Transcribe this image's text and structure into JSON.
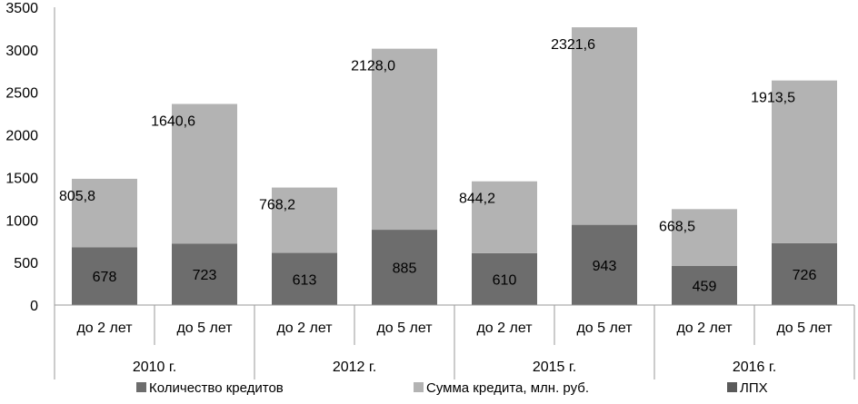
{
  "chart_data": {
    "type": "bar",
    "stacked": true,
    "ylim": [
      0,
      3500
    ],
    "yticks": [
      "0",
      "500",
      "1000",
      "1500",
      "2000",
      "2500",
      "3000",
      "3500"
    ],
    "grid": false,
    "legend_position": "bottom",
    "groups": [
      "2010 г.",
      "2012 г.",
      "2015 г.",
      "2016 г."
    ],
    "categories": [
      "до 2 лет",
      "до 5 лет",
      "до 2 лет",
      "до 5 лет",
      "до 2 лет",
      "до 5 лет",
      "до 2 лет",
      "до 5 лет"
    ],
    "series": [
      {
        "name": "Количество кредитов",
        "color": "#6d6d6d",
        "values": [
          678,
          723,
          613,
          885,
          610,
          943,
          459,
          726
        ],
        "labels": [
          "678",
          "723",
          "613",
          "885",
          "610",
          "943",
          "459",
          "726"
        ]
      },
      {
        "name": "Сумма кредита, млн. руб.",
        "color": "#b3b3b3",
        "values": [
          805.8,
          1640.6,
          768.2,
          2128.0,
          844.2,
          2321.6,
          668.5,
          1913.5
        ],
        "labels": [
          "805,8",
          "1640,6",
          "768,2",
          "2128,0",
          "844,2",
          "2321,6",
          "668,5",
          "1913,5"
        ]
      },
      {
        "name": "ЛПХ",
        "color": "#5a5a5a",
        "values": [
          0,
          0,
          0,
          0,
          0,
          0,
          0,
          0
        ]
      }
    ]
  }
}
